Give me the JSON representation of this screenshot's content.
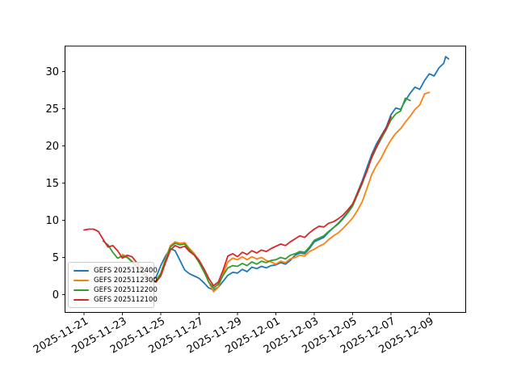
{
  "figure": {
    "background": "#ffffff",
    "title": ""
  },
  "chart_data": {
    "type": "line",
    "title": "",
    "xlabel": "",
    "ylabel": "",
    "grid": false,
    "legend_position": "lower left",
    "x_axis": {
      "range_days": [
        -1.0,
        19.9
      ],
      "tick_positions": [
        0,
        2,
        4,
        6,
        8,
        10,
        12,
        14,
        16,
        18
      ],
      "tick_labels": [
        "2025-11-21",
        "2025-11-23",
        "2025-11-25",
        "2025-11-27",
        "2025-11-29",
        "2025-12-01",
        "2025-12-03",
        "2025-12-05",
        "2025-12-07",
        "2025-12-09"
      ],
      "tick_label_rotation_deg": 30
    },
    "y_axis": {
      "range": [
        -2.4,
        33.4
      ],
      "tick_positions": [
        0,
        5,
        10,
        15,
        20,
        25,
        30
      ],
      "tick_labels": [
        "0",
        "5",
        "10",
        "15",
        "20",
        "25",
        "30"
      ]
    },
    "series": [
      {
        "name": "GEFS 2025112400",
        "color": "#1f77b4",
        "points": [
          [
            3,
            3.4
          ],
          [
            3.25,
            2.6
          ],
          [
            3.5,
            2.0
          ],
          [
            3.75,
            2.3
          ],
          [
            4,
            3.9
          ],
          [
            4.25,
            5.2
          ],
          [
            4.5,
            6.2
          ],
          [
            4.75,
            5.9
          ],
          [
            5,
            4.6
          ],
          [
            5.25,
            3.3
          ],
          [
            5.5,
            2.8
          ],
          [
            5.75,
            2.5
          ],
          [
            6,
            2.2
          ],
          [
            6.25,
            1.6
          ],
          [
            6.5,
            0.9
          ],
          [
            6.75,
            0.65
          ],
          [
            7,
            1.0
          ],
          [
            7.25,
            1.8
          ],
          [
            7.5,
            2.6
          ],
          [
            7.75,
            3.0
          ],
          [
            8,
            2.9
          ],
          [
            8.25,
            3.4
          ],
          [
            8.5,
            3.1
          ],
          [
            8.75,
            3.7
          ],
          [
            9,
            3.5
          ],
          [
            9.25,
            3.8
          ],
          [
            9.5,
            3.6
          ],
          [
            9.75,
            3.9
          ],
          [
            10,
            4.0
          ],
          [
            10.25,
            4.3
          ],
          [
            10.5,
            4.1
          ],
          [
            10.75,
            4.6
          ],
          [
            11,
            5.3
          ],
          [
            11.25,
            5.6
          ],
          [
            11.5,
            5.5
          ],
          [
            11.75,
            6.2
          ],
          [
            12,
            7.1
          ],
          [
            12.25,
            7.4
          ],
          [
            12.5,
            7.7
          ],
          [
            12.75,
            8.4
          ],
          [
            13,
            9.0
          ],
          [
            13.25,
            9.6
          ],
          [
            13.5,
            10.3
          ],
          [
            13.75,
            11.1
          ],
          [
            14,
            12.1
          ],
          [
            14.25,
            13.7
          ],
          [
            14.5,
            15.3
          ],
          [
            14.75,
            17.1
          ],
          [
            15,
            18.9
          ],
          [
            15.25,
            20.3
          ],
          [
            15.5,
            21.4
          ],
          [
            15.75,
            22.5
          ],
          [
            16,
            24.2
          ],
          [
            16.25,
            25.1
          ],
          [
            16.5,
            24.9
          ],
          [
            16.75,
            26.1
          ],
          [
            17,
            27.1
          ],
          [
            17.25,
            27.9
          ],
          [
            17.5,
            27.6
          ],
          [
            17.75,
            28.8
          ],
          [
            18,
            29.7
          ],
          [
            18.25,
            29.4
          ],
          [
            18.5,
            30.5
          ],
          [
            18.75,
            31.1
          ],
          [
            18.85,
            32.0
          ],
          [
            19,
            31.7
          ]
        ]
      },
      {
        "name": "GEFS 2025112300",
        "color": "#ff7f0e",
        "points": [
          [
            2,
            5.4
          ],
          [
            2.25,
            5.1
          ],
          [
            2.5,
            4.5
          ],
          [
            2.75,
            3.9
          ],
          [
            3,
            3.2
          ],
          [
            3.25,
            2.4
          ],
          [
            3.5,
            1.7
          ],
          [
            3.75,
            1.9
          ],
          [
            4,
            2.9
          ],
          [
            4.25,
            4.8
          ],
          [
            4.5,
            6.6
          ],
          [
            4.75,
            7.1
          ],
          [
            5,
            6.9
          ],
          [
            5.25,
            7.0
          ],
          [
            5.5,
            6.2
          ],
          [
            5.75,
            5.5
          ],
          [
            6,
            4.6
          ],
          [
            6.25,
            3.3
          ],
          [
            6.5,
            1.7
          ],
          [
            6.75,
            0.4
          ],
          [
            7,
            1.0
          ],
          [
            7.25,
            2.8
          ],
          [
            7.5,
            4.4
          ],
          [
            7.75,
            4.9
          ],
          [
            8,
            4.7
          ],
          [
            8.25,
            5.1
          ],
          [
            8.5,
            4.7
          ],
          [
            8.75,
            5.1
          ],
          [
            9,
            4.8
          ],
          [
            9.25,
            5.0
          ],
          [
            9.5,
            4.6
          ],
          [
            9.75,
            4.4
          ],
          [
            10,
            4.1
          ],
          [
            10.25,
            4.5
          ],
          [
            10.5,
            4.3
          ],
          [
            10.75,
            4.8
          ],
          [
            11,
            5.0
          ],
          [
            11.25,
            5.3
          ],
          [
            11.5,
            5.2
          ],
          [
            11.75,
            5.8
          ],
          [
            12,
            6.1
          ],
          [
            12.25,
            6.5
          ],
          [
            12.5,
            6.8
          ],
          [
            12.75,
            7.4
          ],
          [
            13,
            7.9
          ],
          [
            13.25,
            8.3
          ],
          [
            13.5,
            8.9
          ],
          [
            13.75,
            9.6
          ],
          [
            14,
            10.3
          ],
          [
            14.25,
            11.3
          ],
          [
            14.5,
            12.5
          ],
          [
            14.75,
            14.3
          ],
          [
            15,
            16.2
          ],
          [
            15.25,
            17.4
          ],
          [
            15.5,
            18.4
          ],
          [
            15.75,
            19.7
          ],
          [
            16,
            20.8
          ],
          [
            16.25,
            21.7
          ],
          [
            16.5,
            22.3
          ],
          [
            16.75,
            23.2
          ],
          [
            17,
            24.0
          ],
          [
            17.25,
            24.9
          ],
          [
            17.5,
            25.5
          ],
          [
            17.75,
            27.0
          ],
          [
            18,
            27.2
          ]
        ]
      },
      {
        "name": "GEFS 2025112200",
        "color": "#2ca02c",
        "points": [
          [
            1,
            7.2
          ],
          [
            1.25,
            6.7
          ],
          [
            1.5,
            5.7
          ],
          [
            1.75,
            4.9
          ],
          [
            2,
            5.2
          ],
          [
            2.25,
            5.0
          ],
          [
            2.5,
            4.4
          ],
          [
            2.75,
            3.7
          ],
          [
            3,
            3.0
          ],
          [
            3.25,
            2.3
          ],
          [
            3.5,
            1.6
          ],
          [
            3.75,
            1.8
          ],
          [
            4,
            2.8
          ],
          [
            4.25,
            4.6
          ],
          [
            4.5,
            6.4
          ],
          [
            4.75,
            6.9
          ],
          [
            5,
            6.7
          ],
          [
            5.25,
            6.8
          ],
          [
            5.5,
            6.0
          ],
          [
            5.75,
            5.3
          ],
          [
            6,
            4.3
          ],
          [
            6.25,
            3.1
          ],
          [
            6.5,
            1.7
          ],
          [
            6.75,
            0.9
          ],
          [
            7,
            1.4
          ],
          [
            7.25,
            2.6
          ],
          [
            7.5,
            3.6
          ],
          [
            7.75,
            3.9
          ],
          [
            8,
            3.8
          ],
          [
            8.25,
            4.2
          ],
          [
            8.5,
            3.9
          ],
          [
            8.75,
            4.4
          ],
          [
            9,
            4.1
          ],
          [
            9.25,
            4.5
          ],
          [
            9.5,
            4.3
          ],
          [
            9.75,
            4.6
          ],
          [
            10,
            4.7
          ],
          [
            10.25,
            5.0
          ],
          [
            10.5,
            4.8
          ],
          [
            10.75,
            5.3
          ],
          [
            11,
            5.5
          ],
          [
            11.25,
            5.8
          ],
          [
            11.5,
            5.7
          ],
          [
            11.75,
            6.4
          ],
          [
            12,
            7.3
          ],
          [
            12.25,
            7.6
          ],
          [
            12.5,
            7.9
          ],
          [
            12.75,
            8.5
          ],
          [
            13,
            9.0
          ],
          [
            13.25,
            9.5
          ],
          [
            13.5,
            10.2
          ],
          [
            13.75,
            11.0
          ],
          [
            14,
            11.9
          ],
          [
            14.25,
            13.4
          ],
          [
            14.5,
            14.9
          ],
          [
            14.75,
            16.7
          ],
          [
            15,
            18.4
          ],
          [
            15.25,
            19.8
          ],
          [
            15.5,
            21.0
          ],
          [
            15.75,
            22.2
          ],
          [
            16,
            23.5
          ],
          [
            16.25,
            24.3
          ],
          [
            16.5,
            24.7
          ],
          [
            16.75,
            26.4
          ],
          [
            17,
            26.1
          ]
        ]
      },
      {
        "name": "GEFS 2025112100",
        "color": "#d62728",
        "points": [
          [
            0,
            8.7
          ],
          [
            0.25,
            8.8
          ],
          [
            0.5,
            8.8
          ],
          [
            0.75,
            8.5
          ],
          [
            1,
            7.4
          ],
          [
            1.25,
            6.4
          ],
          [
            1.5,
            6.6
          ],
          [
            1.75,
            5.9
          ],
          [
            2,
            4.9
          ],
          [
            2.25,
            5.3
          ],
          [
            2.5,
            5.1
          ],
          [
            2.75,
            4.3
          ],
          [
            3,
            3.5
          ],
          [
            3.25,
            2.7
          ],
          [
            3.5,
            1.9
          ],
          [
            3.75,
            1.7
          ],
          [
            4,
            2.5
          ],
          [
            4.25,
            4.3
          ],
          [
            4.5,
            6.0
          ],
          [
            4.75,
            6.6
          ],
          [
            5,
            6.3
          ],
          [
            5.25,
            6.5
          ],
          [
            5.5,
            5.8
          ],
          [
            5.75,
            5.3
          ],
          [
            6,
            4.6
          ],
          [
            6.25,
            3.5
          ],
          [
            6.5,
            2.2
          ],
          [
            6.75,
            1.2
          ],
          [
            7,
            1.7
          ],
          [
            7.25,
            3.3
          ],
          [
            7.5,
            5.2
          ],
          [
            7.75,
            5.5
          ],
          [
            8,
            5.1
          ],
          [
            8.25,
            5.7
          ],
          [
            8.5,
            5.4
          ],
          [
            8.75,
            5.9
          ],
          [
            9,
            5.6
          ],
          [
            9.25,
            6.0
          ],
          [
            9.5,
            5.8
          ],
          [
            9.75,
            6.2
          ],
          [
            10,
            6.5
          ],
          [
            10.25,
            6.8
          ],
          [
            10.5,
            6.6
          ],
          [
            10.75,
            7.1
          ],
          [
            11,
            7.5
          ],
          [
            11.25,
            7.9
          ],
          [
            11.5,
            7.7
          ],
          [
            11.75,
            8.3
          ],
          [
            12,
            8.8
          ],
          [
            12.25,
            9.2
          ],
          [
            12.5,
            9.1
          ],
          [
            12.75,
            9.6
          ],
          [
            13,
            9.8
          ],
          [
            13.25,
            10.2
          ],
          [
            13.5,
            10.7
          ],
          [
            13.75,
            11.4
          ],
          [
            14,
            12.2
          ],
          [
            14.25,
            13.6
          ],
          [
            14.5,
            15.1
          ],
          [
            14.75,
            16.6
          ],
          [
            15,
            18.6
          ],
          [
            15.25,
            19.9
          ],
          [
            15.5,
            21.3
          ],
          [
            15.75,
            22.3
          ],
          [
            16,
            23.9
          ]
        ]
      }
    ]
  }
}
